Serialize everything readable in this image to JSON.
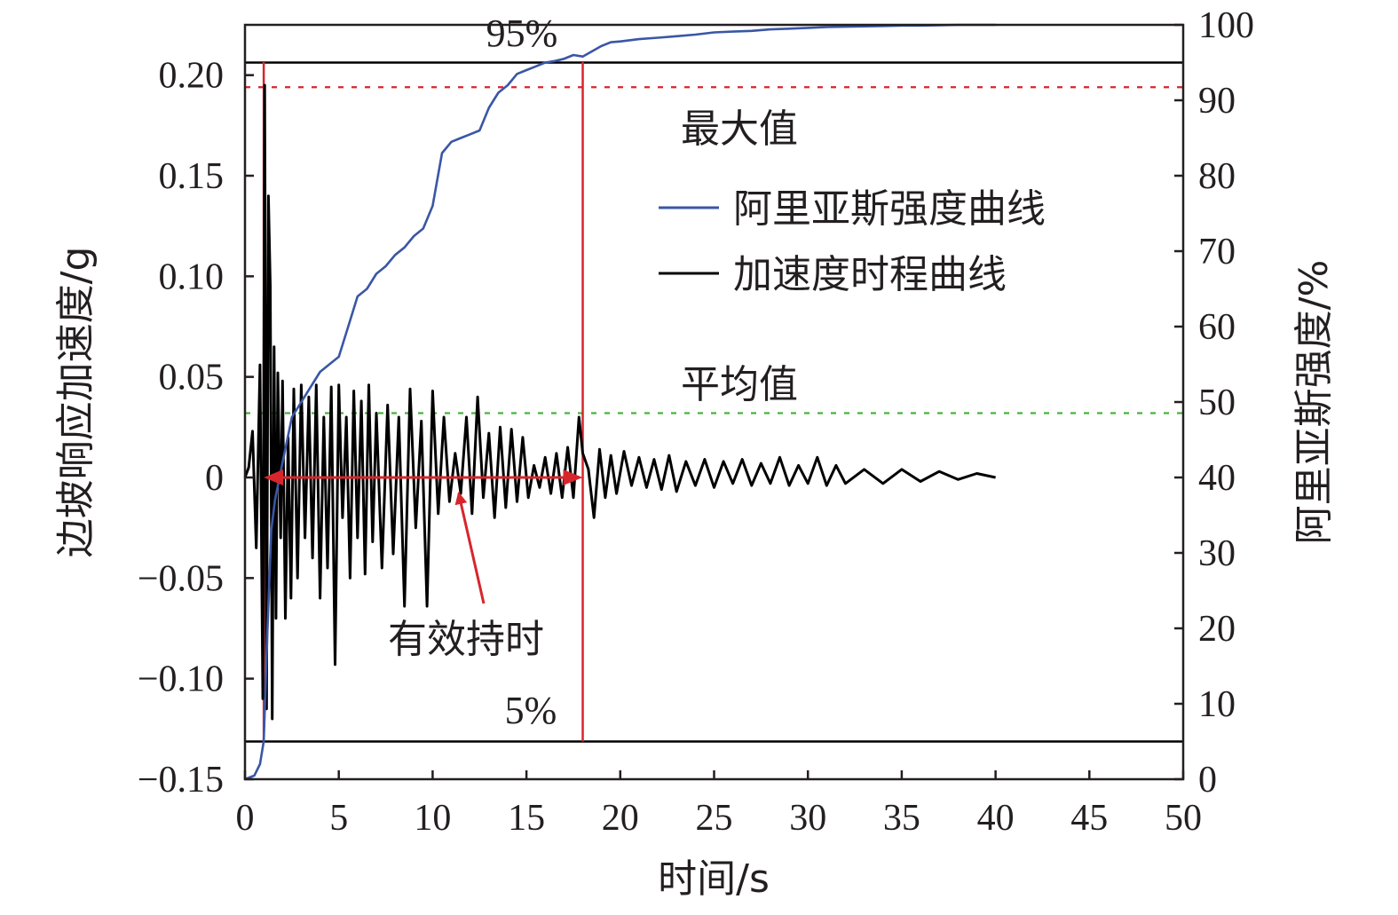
{
  "chart_data": {
    "type": "line",
    "xlabel": "时间/s",
    "ylabel_left": "边坡响应加速度/g",
    "ylabel_right": "阿里亚斯强度/%",
    "xlim": [
      0,
      50
    ],
    "ylim_left": [
      -0.15,
      0.225
    ],
    "ylim_right": [
      0,
      100
    ],
    "x_ticks": [
      "0",
      "5",
      "10",
      "15",
      "20",
      "25",
      "30",
      "35",
      "40",
      "45",
      "50"
    ],
    "y_left_ticks": [
      "−0.15",
      "−0.10",
      "−0.05",
      "0",
      "0.05",
      "0.10",
      "0.15",
      "0.20"
    ],
    "y_right_ticks": [
      "0",
      "10",
      "20",
      "30",
      "40",
      "50",
      "60",
      "70",
      "80",
      "90",
      "100"
    ],
    "legend": {
      "position": "right",
      "items": [
        {
          "name": "阿里亚斯强度曲线",
          "color": "#3a56a5"
        },
        {
          "name": "加速度时程曲线",
          "color": "#000000"
        }
      ]
    },
    "series": [
      {
        "name": "阿里亚斯强度曲线",
        "axis": "right",
        "color": "#3a56a5",
        "x": [
          0,
          0.5,
          0.8,
          1.0,
          1.2,
          1.4,
          1.6,
          2.0,
          2.5,
          3.0,
          3.5,
          4.0,
          4.5,
          5.0,
          5.5,
          6.0,
          6.5,
          7.0,
          7.5,
          8.0,
          8.5,
          9.0,
          9.5,
          10.0,
          10.5,
          11.0,
          11.5,
          12.0,
          12.5,
          13.0,
          13.5,
          14.0,
          14.5,
          15.0,
          15.5,
          16.0,
          16.5,
          17.0,
          17.5,
          18.0,
          18.5,
          19.0,
          19.5,
          20.0,
          21.0,
          22.0,
          23.0,
          24.0,
          25.0,
          26.0,
          27.0,
          28.0,
          29.0,
          30.0,
          31.0,
          32.0,
          33.0,
          34.0,
          35.0,
          36.0,
          37.0,
          38.0,
          39.0,
          40.0
        ],
        "y": [
          0,
          0.5,
          2,
          5,
          20,
          33,
          37,
          42,
          48,
          50,
          52,
          54,
          55,
          56,
          60,
          64,
          65,
          67,
          68,
          69.5,
          70.5,
          72,
          73,
          76,
          83,
          84.5,
          85,
          85.5,
          86,
          89,
          91,
          92,
          93.5,
          94,
          94.5,
          95,
          95.2,
          95.5,
          96,
          95.8,
          96.5,
          97.2,
          97.7,
          97.8,
          98.1,
          98.3,
          98.5,
          98.7,
          99.0,
          99.1,
          99.2,
          99.4,
          99.5,
          99.6,
          99.7,
          99.75,
          99.8,
          99.85,
          99.9,
          99.9,
          99.95,
          100,
          100,
          100
        ]
      },
      {
        "name": "加速度时程曲线",
        "axis": "left",
        "color": "#000000",
        "x": [
          0,
          0.2,
          0.4,
          0.6,
          0.8,
          0.95,
          1.05,
          1.15,
          1.25,
          1.35,
          1.45,
          1.55,
          1.65,
          1.75,
          1.9,
          2.0,
          2.15,
          2.3,
          2.45,
          2.6,
          2.8,
          3.0,
          3.2,
          3.4,
          3.6,
          3.8,
          4.0,
          4.2,
          4.4,
          4.6,
          4.8,
          5.0,
          5.2,
          5.4,
          5.6,
          5.8,
          6.0,
          6.2,
          6.4,
          6.6,
          6.8,
          7.0,
          7.3,
          7.6,
          7.9,
          8.2,
          8.5,
          8.8,
          9.1,
          9.4,
          9.7,
          10.0,
          10.3,
          10.6,
          10.9,
          11.2,
          11.5,
          11.8,
          12.1,
          12.4,
          12.7,
          13.0,
          13.3,
          13.6,
          13.9,
          14.2,
          14.5,
          14.8,
          15.1,
          15.4,
          15.7,
          16.0,
          16.3,
          16.6,
          16.9,
          17.2,
          17.5,
          17.8,
          18.0,
          18.3,
          18.6,
          18.9,
          19.2,
          19.5,
          19.8,
          20.2,
          20.6,
          21.0,
          21.4,
          21.8,
          22.2,
          22.6,
          23.0,
          23.5,
          24.0,
          24.5,
          25.0,
          25.5,
          26.0,
          26.5,
          27.0,
          27.5,
          28.0,
          28.5,
          29.0,
          29.5,
          30.0,
          30.5,
          31.0,
          31.5,
          32.0,
          33.0,
          34.0,
          35.0,
          36.0,
          37.0,
          38.0,
          39.0,
          40.0
        ],
        "y": [
          0,
          0.005,
          0.023,
          -0.035,
          0.056,
          -0.11,
          0.195,
          -0.115,
          0.14,
          0.095,
          -0.12,
          0.065,
          -0.07,
          0.052,
          -0.03,
          0.048,
          -0.07,
          0.02,
          -0.06,
          0.044,
          -0.05,
          0.046,
          -0.03,
          0.04,
          -0.04,
          0.046,
          -0.06,
          0.03,
          -0.045,
          0.045,
          -0.093,
          0.046,
          -0.02,
          0.03,
          -0.05,
          0.043,
          -0.03,
          0.038,
          -0.048,
          0.046,
          -0.032,
          0.032,
          -0.045,
          0.036,
          -0.038,
          0.03,
          -0.064,
          0.044,
          -0.025,
          0.028,
          -0.064,
          0.043,
          -0.018,
          0.03,
          -0.012,
          0.012,
          -0.008,
          0.03,
          -0.018,
          0.04,
          -0.01,
          0.022,
          -0.02,
          0.025,
          -0.015,
          0.024,
          -0.012,
          0.02,
          -0.01,
          0.006,
          -0.005,
          0.01,
          -0.008,
          0.012,
          -0.01,
          0.015,
          -0.01,
          0.03,
          0.012,
          0.004,
          -0.02,
          0.014,
          -0.01,
          0.011,
          -0.008,
          0.013,
          -0.004,
          0.01,
          -0.005,
          0.009,
          -0.006,
          0.011,
          -0.007,
          0.008,
          -0.004,
          0.009,
          -0.005,
          0.008,
          -0.003,
          0.009,
          -0.004,
          0.007,
          -0.003,
          0.01,
          -0.004,
          0.006,
          -0.003,
          0.01,
          -0.004,
          0.006,
          -0.003,
          0.004,
          -0.003,
          0.004,
          -0.002,
          0.003,
          -0.001,
          0.002,
          0
        ]
      }
    ],
    "reference_lines": [
      {
        "axis": "left",
        "y": 0.194,
        "label": "最大值",
        "color": "#d6262c",
        "style": "dotted"
      },
      {
        "axis": "left",
        "y": 0.032,
        "label": "平均值",
        "color": "#46b53b",
        "style": "dotted"
      },
      {
        "axis": "right",
        "y": 95,
        "label": "95%",
        "color": "#000000",
        "style": "solid"
      },
      {
        "axis": "right",
        "y": 5,
        "label": "5%",
        "color": "#000000",
        "style": "solid"
      }
    ],
    "vertical_lines": [
      {
        "x": 1.0,
        "color": "#d6262c"
      },
      {
        "x": 18.0,
        "color": "#d6262c"
      }
    ],
    "annotations": [
      {
        "text": "有效持时",
        "type": "duration_arrow",
        "x_start": 1.0,
        "x_end": 18.0,
        "y": 0,
        "pointer_to_x": 11.2,
        "color": "#d6262c"
      }
    ]
  }
}
